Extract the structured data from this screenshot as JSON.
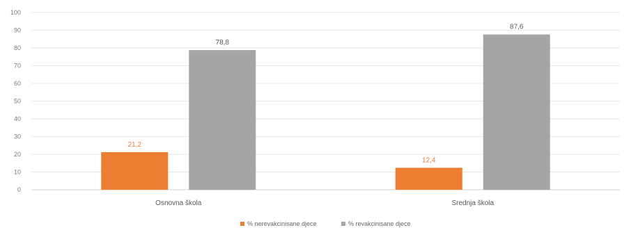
{
  "chart_data": {
    "type": "bar",
    "categories": [
      "Osnovna škola",
      "Srednja škola"
    ],
    "series": [
      {
        "name": "% nerevakcinisane djece",
        "values": [
          21.2,
          12.4
        ],
        "labels": [
          "21,2",
          "12,4"
        ],
        "color": "#ed7d31"
      },
      {
        "name": "% revakcinisane djece",
        "values": [
          78.8,
          87.6
        ],
        "labels": [
          "78,8",
          "87,6"
        ],
        "color": "#a5a5a5"
      }
    ],
    "yticks": [
      "0",
      "10",
      "20",
      "30",
      "40",
      "50",
      "60",
      "70",
      "80",
      "90",
      "100"
    ],
    "ylim": [
      0,
      100
    ],
    "grid": true,
    "legend_position": "bottom",
    "title": "",
    "xlabel": "",
    "ylabel": ""
  }
}
